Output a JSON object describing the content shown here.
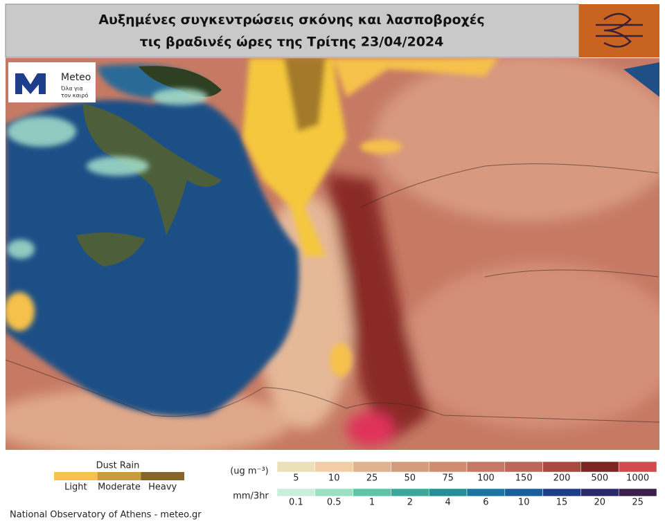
{
  "header": {
    "title_lines": [
      "Αυξημένες συγκεντρώσεις σκόνης και λασποβροχές",
      "τις βραδινές ώρες της Τρίτης 23/04/2024"
    ]
  },
  "logo": {
    "name": "Meteo",
    "tagline_lines": [
      "Όλα για",
      "τον καιρό"
    ]
  },
  "dust_rain_legend": {
    "title": "Dust Rain",
    "levels": [
      {
        "label": "Light",
        "color": "#f6c14c"
      },
      {
        "label": "Moderate",
        "color": "#c99b3c"
      },
      {
        "label": "Heavy",
        "color": "#86652a"
      }
    ]
  },
  "concentration_scale": {
    "unit": "(ug m⁻³)",
    "ticks": [
      5,
      10,
      25,
      50,
      75,
      100,
      150,
      200,
      500,
      1000
    ],
    "colors": [
      "#ebe0b8",
      "#f2cda6",
      "#e0b28e",
      "#d49c7d",
      "#cf8c70",
      "#c67866",
      "#bd675a",
      "#a84a40",
      "#7c2523",
      "#d04a4e"
    ]
  },
  "precip_scale": {
    "unit": "mm/3hr",
    "ticks": [
      0.1,
      0.5,
      1,
      2,
      4,
      6,
      10,
      15,
      20,
      25
    ],
    "colors": [
      "#c9eedb",
      "#9ddfc4",
      "#5ec4a8",
      "#3aa99a",
      "#238f97",
      "#1a78a0",
      "#1a5e9a",
      "#1e3f86",
      "#2a2a6a",
      "#3a1f4e"
    ]
  },
  "footer": "National Observatory of Athens - meteo.gr"
}
